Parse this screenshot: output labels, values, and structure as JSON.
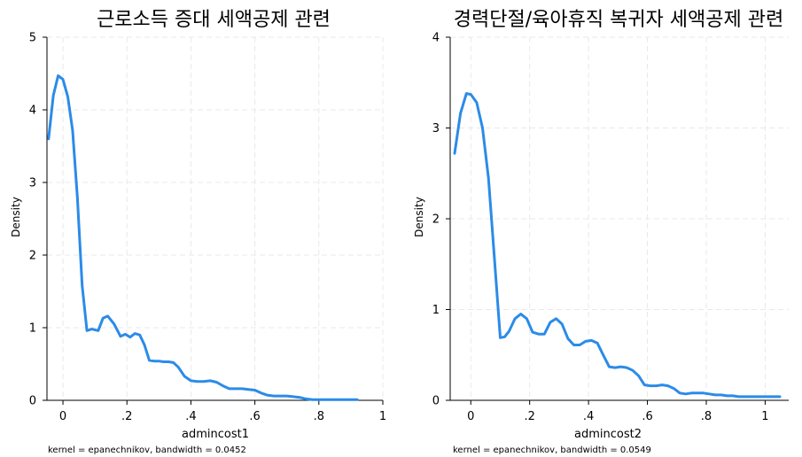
{
  "colors": {
    "line": "#2b8be8",
    "grid": "#e8e8e8",
    "axis": "#000000",
    "background": "#ffffff"
  },
  "chart_data": [
    {
      "type": "line",
      "title": "근로소득 증대 세액공제 관련",
      "xlabel": "admincost1",
      "ylabel": "Density",
      "note": "kernel = epanechnikov, bandwidth = 0.0452",
      "xlim": [
        -0.05,
        1.0
      ],
      "ylim": [
        0,
        5
      ],
      "xticks": [
        0,
        0.2,
        0.4,
        0.6,
        0.8,
        1
      ],
      "xtick_labels": [
        "0",
        ".2",
        ".4",
        ".6",
        ".8",
        "1"
      ],
      "yticks": [
        0,
        1,
        2,
        3,
        4,
        5
      ],
      "ytick_labels": [
        "0",
        "1",
        "2",
        "3",
        "4",
        "5"
      ],
      "grid": true,
      "series": [
        {
          "x": [
            -0.045,
            -0.03,
            -0.015,
            0.0,
            0.015,
            0.03,
            0.045,
            0.06,
            0.075,
            0.09,
            0.11,
            0.125,
            0.14,
            0.16,
            0.18,
            0.195,
            0.21,
            0.225,
            0.24,
            0.255,
            0.27,
            0.285,
            0.3,
            0.315,
            0.33,
            0.345,
            0.36,
            0.38,
            0.4,
            0.42,
            0.44,
            0.46,
            0.48,
            0.5,
            0.52,
            0.54,
            0.56,
            0.58,
            0.6,
            0.62,
            0.64,
            0.66,
            0.68,
            0.7,
            0.72,
            0.74,
            0.76,
            0.78,
            0.8,
            0.82,
            0.84,
            0.86,
            0.88,
            0.9,
            0.92
          ],
          "y": [
            3.6,
            4.2,
            4.47,
            4.42,
            4.18,
            3.72,
            2.8,
            1.58,
            0.96,
            0.98,
            0.96,
            1.13,
            1.16,
            1.05,
            0.88,
            0.91,
            0.87,
            0.92,
            0.9,
            0.76,
            0.55,
            0.54,
            0.54,
            0.53,
            0.53,
            0.52,
            0.46,
            0.33,
            0.27,
            0.26,
            0.26,
            0.27,
            0.25,
            0.2,
            0.16,
            0.16,
            0.16,
            0.15,
            0.14,
            0.1,
            0.07,
            0.06,
            0.06,
            0.06,
            0.05,
            0.04,
            0.02,
            0.01,
            0.01,
            0.01,
            0.01,
            0.01,
            0.01,
            0.01,
            0.01
          ]
        }
      ]
    },
    {
      "type": "line",
      "title": "경력단절/육아휴직 복귀자 세액공제 관련",
      "xlabel": "admincost2",
      "ylabel": "Density",
      "note": "kernel = epanechnikov, bandwidth = 0.0549",
      "xlim": [
        -0.07,
        1.08
      ],
      "ylim": [
        0,
        4
      ],
      "xticks": [
        0,
        0.2,
        0.4,
        0.6,
        0.8,
        1
      ],
      "xtick_labels": [
        "0",
        ".2",
        ".4",
        ".6",
        ".8",
        "1"
      ],
      "yticks": [
        0,
        1,
        2,
        3,
        4
      ],
      "ytick_labels": [
        "0",
        "1",
        "2",
        "3",
        "4"
      ],
      "grid": true,
      "series": [
        {
          "x": [
            -0.055,
            -0.035,
            -0.015,
            0.0,
            0.02,
            0.04,
            0.06,
            0.08,
            0.1,
            0.115,
            0.13,
            0.15,
            0.17,
            0.19,
            0.21,
            0.23,
            0.25,
            0.27,
            0.29,
            0.31,
            0.33,
            0.35,
            0.37,
            0.39,
            0.41,
            0.43,
            0.45,
            0.47,
            0.49,
            0.51,
            0.53,
            0.55,
            0.57,
            0.59,
            0.61,
            0.63,
            0.65,
            0.67,
            0.69,
            0.71,
            0.73,
            0.75,
            0.77,
            0.79,
            0.81,
            0.83,
            0.85,
            0.87,
            0.89,
            0.91,
            0.93,
            0.95,
            0.97,
            0.99,
            1.01,
            1.03,
            1.05
          ],
          "y": [
            2.72,
            3.16,
            3.38,
            3.37,
            3.28,
            3.0,
            2.45,
            1.58,
            0.69,
            0.7,
            0.76,
            0.9,
            0.95,
            0.9,
            0.75,
            0.73,
            0.73,
            0.86,
            0.9,
            0.84,
            0.68,
            0.61,
            0.61,
            0.65,
            0.66,
            0.63,
            0.5,
            0.37,
            0.36,
            0.37,
            0.36,
            0.33,
            0.27,
            0.17,
            0.16,
            0.16,
            0.17,
            0.16,
            0.13,
            0.08,
            0.07,
            0.08,
            0.08,
            0.08,
            0.07,
            0.06,
            0.06,
            0.05,
            0.05,
            0.04,
            0.04,
            0.04,
            0.04,
            0.04,
            0.04,
            0.04,
            0.04
          ]
        }
      ]
    }
  ]
}
